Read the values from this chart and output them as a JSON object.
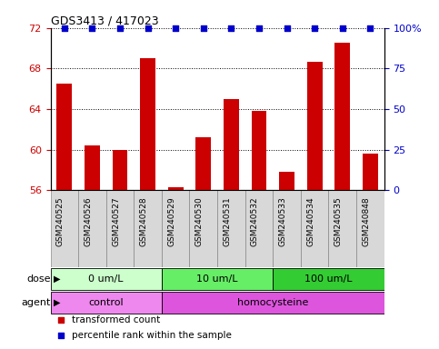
{
  "title": "GDS3413 / 417023",
  "samples": [
    "GSM240525",
    "GSM240526",
    "GSM240527",
    "GSM240528",
    "GSM240529",
    "GSM240530",
    "GSM240531",
    "GSM240532",
    "GSM240533",
    "GSM240534",
    "GSM240535",
    "GSM240848"
  ],
  "bar_values": [
    66.5,
    60.4,
    60.0,
    69.0,
    56.3,
    61.2,
    65.0,
    63.8,
    57.8,
    68.7,
    70.5,
    59.6
  ],
  "bar_color": "#cc0000",
  "dot_color": "#0000cc",
  "ylim_left": [
    56,
    72
  ],
  "ylim_right": [
    0,
    100
  ],
  "yticks_left": [
    56,
    60,
    64,
    68,
    72
  ],
  "yticks_right": [
    0,
    25,
    50,
    75,
    100
  ],
  "ytick_labels_right": [
    "0",
    "25",
    "50",
    "75",
    "100%"
  ],
  "dose_groups": [
    {
      "label": "0 um/L",
      "start": 0,
      "end": 4,
      "color": "#ccffcc"
    },
    {
      "label": "10 um/L",
      "start": 4,
      "end": 8,
      "color": "#66ee66"
    },
    {
      "label": "100 um/L",
      "start": 8,
      "end": 12,
      "color": "#33cc33"
    }
  ],
  "agent_groups": [
    {
      "label": "control",
      "start": 0,
      "end": 4,
      "color": "#ee88ee"
    },
    {
      "label": "homocysteine",
      "start": 4,
      "end": 12,
      "color": "#dd55dd"
    }
  ],
  "legend_items": [
    {
      "label": "transformed count",
      "color": "#cc0000"
    },
    {
      "label": "percentile rank within the sample",
      "color": "#0000cc"
    }
  ],
  "dose_label": "dose",
  "agent_label": "agent",
  "bar_width": 0.55,
  "tick_label_color_left": "#cc0000",
  "tick_label_color_right": "#0000cc",
  "sample_box_color": "#d8d8d8",
  "sample_box_edge": "#888888"
}
